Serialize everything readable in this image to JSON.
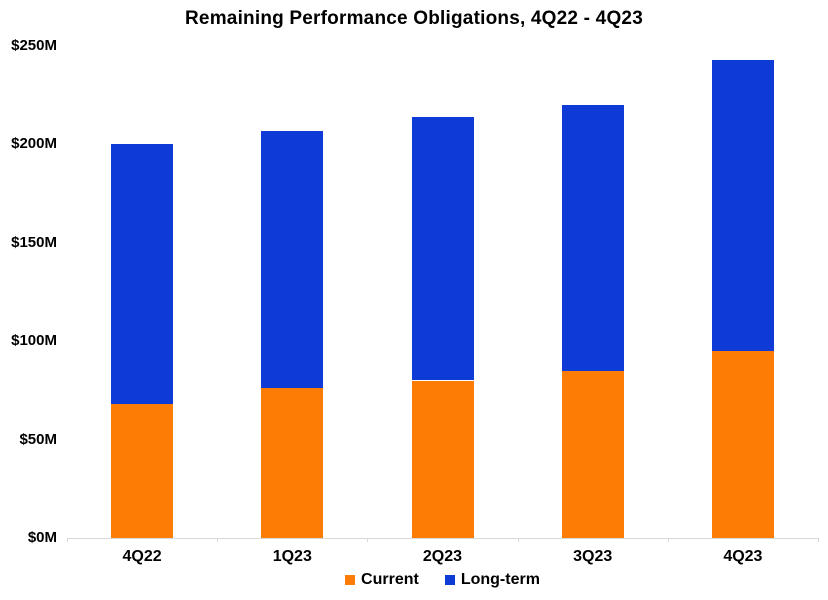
{
  "chart_data": {
    "type": "bar",
    "stacked": true,
    "title": "Remaining Performance Obligations, 4Q22 - 4Q23",
    "categories": [
      "4Q22",
      "1Q23",
      "2Q23",
      "3Q23",
      "4Q23"
    ],
    "series": [
      {
        "name": "Current",
        "color": "#FC7C05",
        "values": [
          68,
          76,
          80,
          85,
          95
        ]
      },
      {
        "name": "Long-term",
        "color": "#0E3AD6",
        "values": [
          132,
          131,
          134,
          135,
          148
        ]
      }
    ],
    "stacked_totals": [
      200,
      207,
      214,
      220,
      243
    ],
    "unit": "$M",
    "ylim": [
      0,
      250
    ],
    "yticks": [
      {
        "value": 0,
        "label": "$0M"
      },
      {
        "value": 50,
        "label": "$50M"
      },
      {
        "value": 100,
        "label": "$100M"
      },
      {
        "value": 150,
        "label": "$150M"
      },
      {
        "value": 200,
        "label": "$200M"
      },
      {
        "value": 250,
        "label": "$250M"
      }
    ],
    "legend_position": "bottom",
    "gridlines": false,
    "axis_color": "#D9D9D9",
    "text_color": "#000000",
    "background_color": "#FFFFFF"
  }
}
